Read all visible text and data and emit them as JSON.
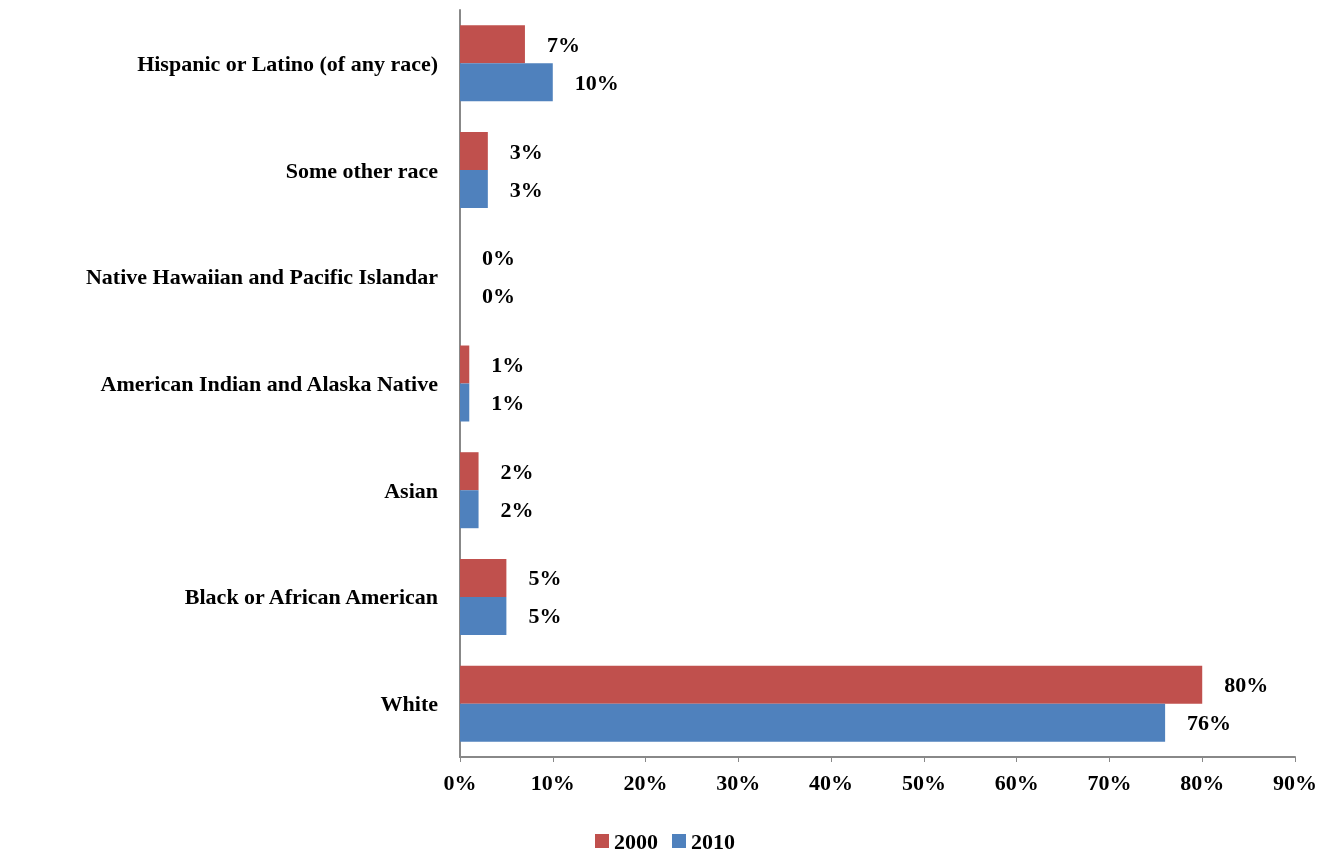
{
  "chart_data": {
    "type": "bar",
    "orientation": "horizontal",
    "categories": [
      "Hispanic or Latino (of any race)",
      "Some other race",
      "Native Hawaiian and Pacific Islandar",
      "American Indian and Alaska Native",
      "Asian",
      "Black or African American",
      "White"
    ],
    "series": [
      {
        "name": "2000",
        "color": "#c0504d",
        "values": [
          7,
          3,
          0,
          1,
          2,
          5,
          80
        ],
        "value_labels": [
          "7%",
          "3%",
          "0%",
          "1%",
          "2%",
          "5%",
          "80%"
        ]
      },
      {
        "name": "2010",
        "color": "#4f81bd",
        "values": [
          10,
          3,
          0,
          1,
          2,
          5,
          76
        ],
        "value_labels": [
          "10%",
          "3%",
          "0%",
          "1%",
          "2%",
          "5%",
          "76%"
        ]
      }
    ],
    "xlim": [
      0,
      90
    ],
    "xticks": [
      {
        "value": 0,
        "label": "0%"
      },
      {
        "value": 10,
        "label": "10%"
      },
      {
        "value": 20,
        "label": "20%"
      },
      {
        "value": 30,
        "label": "30%"
      },
      {
        "value": 40,
        "label": "40%"
      },
      {
        "value": 50,
        "label": "50%"
      },
      {
        "value": 60,
        "label": "60%"
      },
      {
        "value": 70,
        "label": "70%"
      },
      {
        "value": 80,
        "label": "80%"
      },
      {
        "value": 90,
        "label": "90%"
      }
    ],
    "grid": false,
    "legend": "bottom"
  }
}
